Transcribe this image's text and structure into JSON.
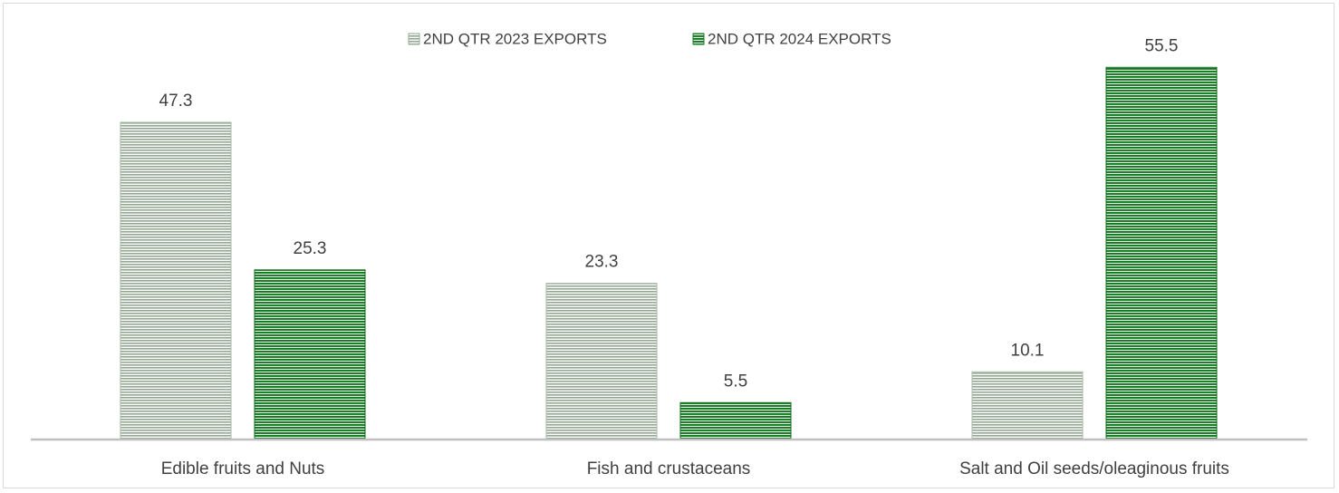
{
  "chart_data": {
    "type": "bar",
    "title": "",
    "xlabel": "",
    "ylabel": "",
    "categories": [
      "Edible fruits and Nuts",
      "Fish and crustaceans",
      "Salt and Oil seeds/oleaginous fruits"
    ],
    "series": [
      {
        "name": "2ND QTR 2023 EXPORTS",
        "values": [
          47.3,
          23.3,
          10.1
        ],
        "color": "#8faa8f",
        "pattern": "horizontal-stripes-light"
      },
      {
        "name": "2ND QTR 2024 EXPORTS",
        "values": [
          25.3,
          5.5,
          55.5
        ],
        "color": "#0f7a1e",
        "pattern": "horizontal-stripes-dark"
      }
    ],
    "ylim": [
      0,
      60
    ],
    "grid": false,
    "legend_position": "top-center",
    "data_labels": true
  }
}
